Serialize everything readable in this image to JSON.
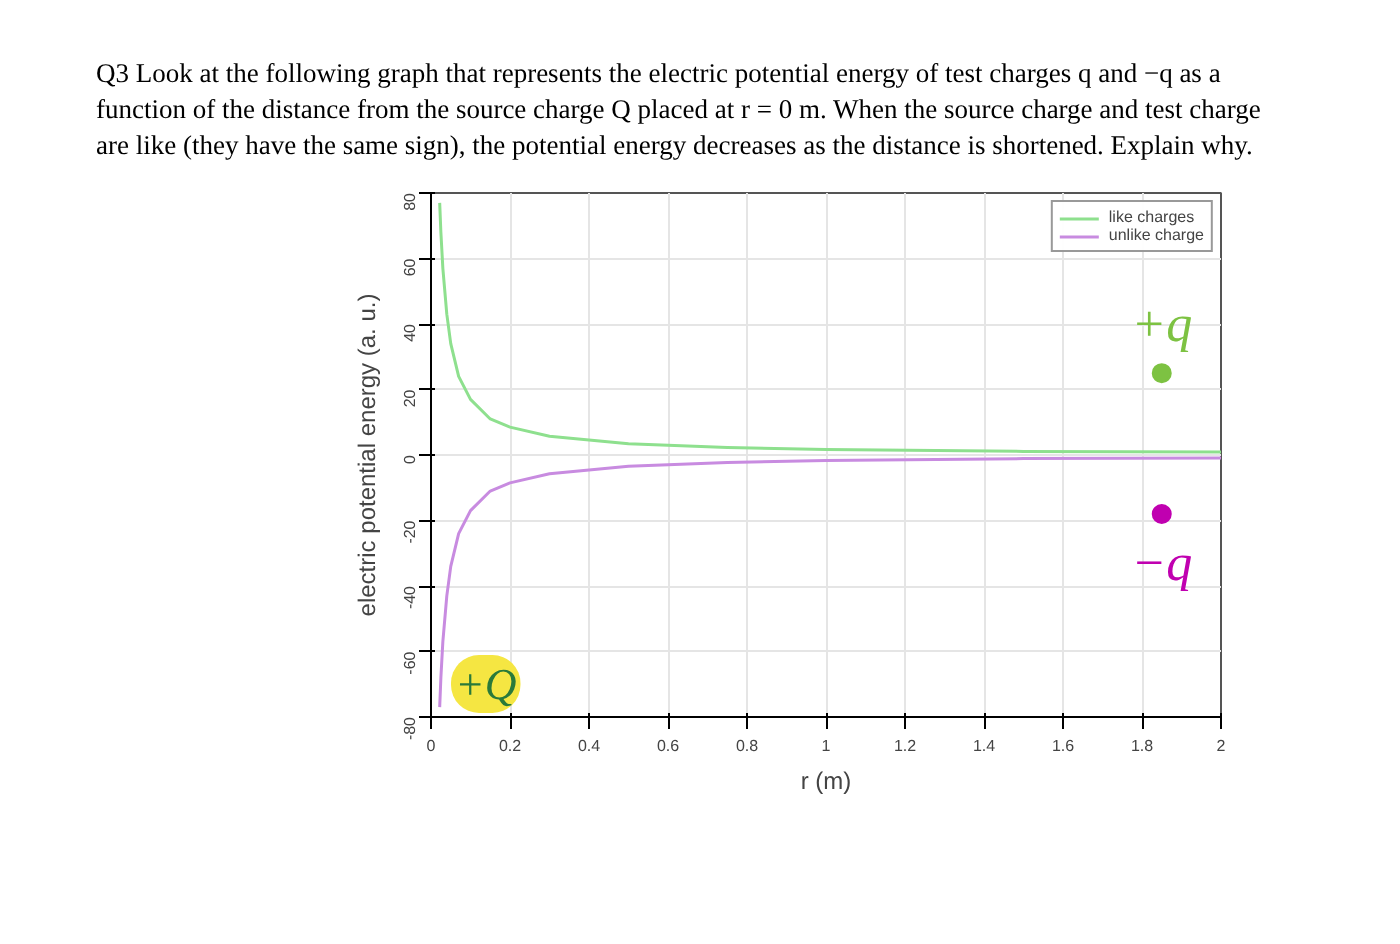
{
  "chart_data": {
    "type": "line",
    "title": "Q3 Look at the following graph that represents the electric potential energy of test charges q and −q as a function of the distance from the source charge Q placed at r = 0 m. When the source charge and test charge are like (they have the same sign), the potential energy decreases as the distance is shortened. Explain why.",
    "xlabel": "r (m)",
    "ylabel": "electric potential energy (a. u.)",
    "x": [
      0.022,
      0.025,
      0.03,
      0.04,
      0.05,
      0.07,
      0.1,
      0.15,
      0.2,
      0.3,
      0.5,
      0.75,
      1,
      1.5,
      2
    ],
    "series": [
      {
        "name": "like charges",
        "color": "#8ee08e",
        "values": [
          77,
          68,
          57,
          43,
          34,
          24,
          17,
          11,
          8.5,
          5.7,
          3.4,
          2.3,
          1.7,
          1.1,
          0.9
        ]
      },
      {
        "name": "unlike charge",
        "color": "#c88be0",
        "values": [
          -77,
          -68,
          -57,
          -43,
          -34,
          -24,
          -17,
          -11,
          -8.5,
          -5.7,
          -3.4,
          -2.3,
          -1.7,
          -1.1,
          -0.9
        ]
      },
      {
        "name": "+q",
        "type": "scatter",
        "marker": "circle",
        "color": "#7dc242",
        "x": [
          1.85
        ],
        "values": [
          25
        ]
      },
      {
        "name": "−q",
        "type": "scatter",
        "marker": "circle",
        "color": "#c000b0",
        "x": [
          1.85
        ],
        "values": [
          -18
        ]
      }
    ],
    "annotations": [
      "+Q"
    ],
    "xlim": [
      0,
      2
    ],
    "ylim": [
      -80,
      80
    ],
    "xticks": [
      0,
      0.2,
      0.4,
      0.6,
      0.8,
      1,
      1.2,
      1.4,
      1.6,
      1.8,
      2
    ],
    "yticks": [
      -80,
      -60,
      -40,
      -20,
      0,
      20,
      40,
      60,
      80
    ],
    "grid": true,
    "legend": "top right"
  }
}
